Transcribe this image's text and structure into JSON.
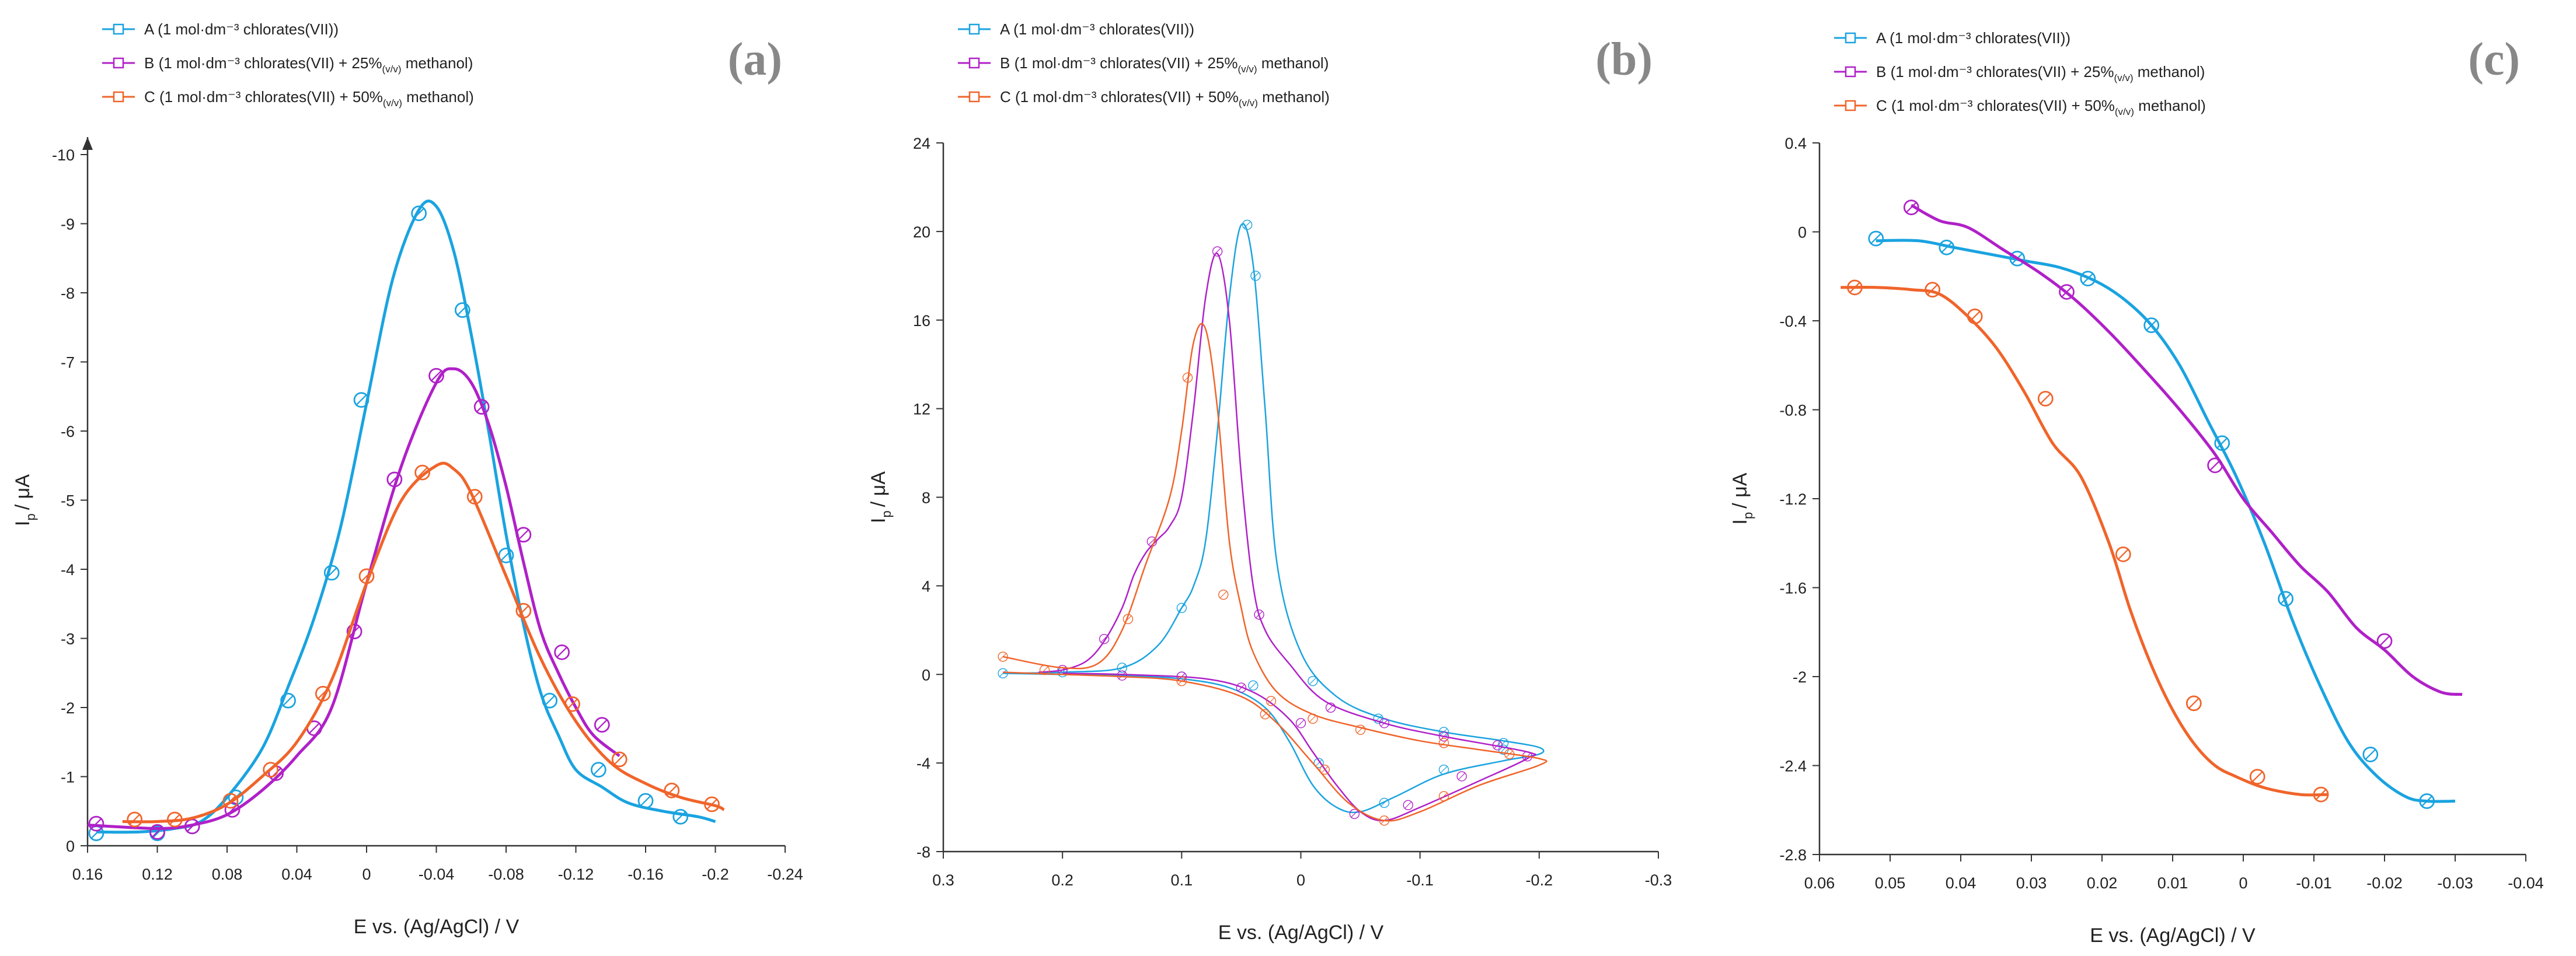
{
  "chart_data": [
    {
      "type": "line",
      "panel_label": "(a)",
      "xlabel": "E vs. (Ag/AgCl) / V",
      "ylabel_main": "I",
      "ylabel_sub": "p",
      "ylabel_rest": "/ μA",
      "xlim": [
        0.16,
        -0.24
      ],
      "ylim": [
        0,
        -10
      ],
      "xticks": [
        0.16,
        0.12,
        0.08,
        0.04,
        0,
        -0.04,
        -0.08,
        -0.12,
        -0.16,
        -0.2,
        -0.24
      ],
      "xtick_labels": [
        "0.16",
        "0.12",
        "0.08",
        "0.04",
        "0",
        "-0.04",
        "-0.08",
        "-0.12",
        "-0.16",
        "-0.2",
        "-0.24"
      ],
      "yticks": [
        0,
        -1,
        -2,
        -3,
        -4,
        -5,
        -6,
        -7,
        -8,
        -9,
        -10
      ],
      "ytick_labels": [
        "0",
        "-1",
        "-2",
        "-3",
        "-4",
        "-5",
        "-6",
        "-7",
        "-8",
        "-9",
        "-10"
      ],
      "y_arrow": true,
      "series": [
        {
          "name": "A (1 mol·dm⁻³ chlorates(VII))",
          "sub": "",
          "name_rest": "",
          "color": "#1aa3e0",
          "x": [
            0.155,
            0.13,
            0.11,
            0.095,
            0.08,
            0.06,
            0.045,
            0.03,
            0.015,
            0.0,
            -0.015,
            -0.03,
            -0.04,
            -0.05,
            -0.06,
            -0.07,
            -0.08,
            -0.09,
            -0.1,
            -0.11,
            -0.12,
            -0.135,
            -0.15,
            -0.17,
            -0.19,
            -0.2
          ],
          "y": [
            -0.2,
            -0.2,
            -0.25,
            -0.35,
            -0.7,
            -1.4,
            -2.3,
            -3.3,
            -4.6,
            -6.4,
            -8.2,
            -9.2,
            -9.25,
            -8.6,
            -7.4,
            -6.0,
            -4.5,
            -3.2,
            -2.2,
            -1.6,
            -1.1,
            -0.85,
            -0.62,
            -0.5,
            -0.42,
            -0.35
          ],
          "marker_x": [
            0.155,
            0.12,
            0.1,
            0.075,
            0.045,
            0.02,
            0.003,
            -0.03,
            -0.055,
            -0.08,
            -0.105,
            -0.133,
            -0.16,
            -0.18
          ],
          "marker_y": [
            -0.18,
            -0.18,
            -0.28,
            -0.7,
            -2.1,
            -3.95,
            -6.45,
            -9.15,
            -7.75,
            -4.2,
            -2.1,
            -1.1,
            -0.65,
            -0.42
          ]
        },
        {
          "name": "B (1 mol·dm⁻³ chlorates(VII) + 25%",
          "sub": "(v/v)",
          "name_rest": " methanol)",
          "color": "#b020c8",
          "x": [
            0.16,
            0.12,
            0.1,
            0.08,
            0.06,
            0.04,
            0.02,
            0.0,
            -0.02,
            -0.04,
            -0.05,
            -0.06,
            -0.07,
            -0.08,
            -0.09,
            -0.1,
            -0.11,
            -0.12,
            -0.13,
            -0.145
          ],
          "y": [
            -0.3,
            -0.25,
            -0.3,
            -0.45,
            -0.8,
            -1.3,
            -2.0,
            -3.8,
            -5.5,
            -6.7,
            -6.9,
            -6.7,
            -6.1,
            -5.2,
            -4.1,
            -3.1,
            -2.5,
            -2.0,
            -1.6,
            -1.3
          ],
          "marker_x": [
            0.155,
            0.12,
            0.1,
            0.077,
            0.052,
            0.03,
            0.007,
            -0.016,
            -0.04,
            -0.066,
            -0.09,
            -0.112,
            -0.135
          ],
          "marker_y": [
            -0.32,
            -0.2,
            -0.28,
            -0.52,
            -1.05,
            -1.7,
            -3.1,
            -5.3,
            -6.8,
            -6.35,
            -4.5,
            -2.8,
            -1.75
          ]
        },
        {
          "name": "C (1 mol·dm⁻³ chlorates(VII) + 50%",
          "sub": "(v/v)",
          "name_rest": " methanol)",
          "color": "#f0642a",
          "x": [
            0.14,
            0.12,
            0.1,
            0.08,
            0.06,
            0.04,
            0.02,
            0.0,
            -0.02,
            -0.04,
            -0.05,
            -0.06,
            -0.08,
            -0.1,
            -0.12,
            -0.14,
            -0.16,
            -0.18,
            -0.2,
            -0.205
          ],
          "y": [
            -0.35,
            -0.35,
            -0.4,
            -0.6,
            -1.0,
            -1.5,
            -2.4,
            -3.8,
            -5.0,
            -5.5,
            -5.45,
            -5.1,
            -3.9,
            -2.7,
            -1.8,
            -1.2,
            -0.9,
            -0.7,
            -0.58,
            -0.52
          ],
          "marker_x": [
            0.133,
            0.11,
            0.078,
            0.055,
            0.025,
            0.0,
            -0.032,
            -0.062,
            -0.09,
            -0.118,
            -0.145,
            -0.175,
            -0.198
          ],
          "marker_y": [
            -0.38,
            -0.38,
            -0.65,
            -1.1,
            -2.2,
            -3.9,
            -5.4,
            -5.05,
            -3.4,
            -2.05,
            -1.25,
            -0.8,
            -0.6
          ]
        }
      ]
    },
    {
      "type": "line",
      "panel_label": "(b)",
      "xlabel": "E vs. (Ag/AgCl) / V",
      "ylabel_main": "I",
      "ylabel_sub": "p",
      "ylabel_rest": "/ μA",
      "xlim": [
        0.3,
        -0.3
      ],
      "ylim": [
        -8,
        24
      ],
      "xticks": [
        0.3,
        0.2,
        0.1,
        0,
        -0.1,
        -0.2,
        -0.3
      ],
      "xtick_labels": [
        "0.3",
        "0.2",
        "0.1",
        "0",
        "-0.1",
        "-0.2",
        "-0.3"
      ],
      "yticks": [
        -8,
        -4,
        0,
        4,
        8,
        12,
        16,
        20,
        24
      ],
      "ytick_labels": [
        "-8",
        "-4",
        "0",
        "4",
        "8",
        "12",
        "16",
        "20",
        "24"
      ],
      "y_arrow": false,
      "series": [
        {
          "name": "A (1 mol·dm⁻³ chlorates(VII))",
          "sub": "",
          "name_rest": "",
          "color": "#1aa3e0",
          "x": [
            0.25,
            0.2,
            0.15,
            0.12,
            0.1,
            0.09,
            0.08,
            0.07,
            0.06,
            0.05,
            0.04,
            0.03,
            0.02,
            0.0,
            -0.03,
            -0.07,
            -0.12,
            -0.17,
            -0.2,
            -0.2,
            -0.17,
            -0.12,
            -0.08,
            -0.05,
            -0.03,
            -0.01,
            0.01,
            0.03,
            0.06,
            0.1,
            0.15,
            0.2,
            0.25
          ],
          "y": [
            0.05,
            0.1,
            0.3,
            1.3,
            3.0,
            4.0,
            6.0,
            11.0,
            17.0,
            20.3,
            18.5,
            12.0,
            5.0,
            1.0,
            -1.0,
            -2.0,
            -2.6,
            -3.0,
            -3.3,
            -3.6,
            -3.9,
            -4.5,
            -5.5,
            -6.2,
            -6.0,
            -5.0,
            -3.0,
            -1.5,
            -0.6,
            -0.2,
            -0.05,
            0.0,
            0.05
          ],
          "marker_x": [
            0.25,
            0.2,
            0.15,
            0.1,
            0.045,
            0.038,
            -0.01,
            -0.065,
            -0.12,
            -0.17,
            -0.17,
            -0.12,
            -0.07,
            -0.015,
            0.04,
            0.1
          ],
          "marker_y": [
            0.05,
            0.1,
            0.3,
            3.0,
            20.3,
            18.0,
            -0.3,
            -2.0,
            -2.6,
            -3.1,
            -3.4,
            -4.3,
            -5.8,
            -4.0,
            -0.5,
            -0.1
          ]
        },
        {
          "name": "B (1 mol·dm⁻³ chlorates(VII) + 25%",
          "sub": "(v/v)",
          "name_rest": " methanol)",
          "color": "#b020c8",
          "x": [
            0.22,
            0.2,
            0.18,
            0.165,
            0.15,
            0.14,
            0.13,
            0.12,
            0.11,
            0.1,
            0.09,
            0.08,
            0.07,
            0.06,
            0.05,
            0.04,
            0.03,
            0.01,
            -0.02,
            -0.07,
            -0.12,
            -0.19,
            -0.19,
            -0.15,
            -0.1,
            -0.07,
            -0.05,
            -0.03,
            -0.01,
            0.01,
            0.04,
            0.08,
            0.15,
            0.2
          ],
          "y": [
            0.1,
            0.2,
            0.6,
            1.5,
            3.0,
            4.5,
            5.5,
            6.1,
            6.7,
            8.0,
            12.0,
            17.0,
            19.0,
            16.0,
            9.0,
            4.0,
            2.0,
            0.5,
            -1.2,
            -2.2,
            -2.8,
            -3.5,
            -3.8,
            -4.8,
            -6.0,
            -6.6,
            -6.2,
            -5.0,
            -3.5,
            -2.0,
            -0.8,
            -0.2,
            0.0,
            0.05
          ],
          "marker_x": [
            0.2,
            0.165,
            0.125,
            0.07,
            0.035,
            -0.025,
            -0.07,
            -0.12,
            -0.165,
            -0.19,
            -0.135,
            -0.09,
            -0.045,
            0.0,
            0.05,
            0.1,
            0.15
          ],
          "marker_y": [
            0.2,
            1.6,
            6.0,
            19.1,
            2.7,
            -1.5,
            -2.2,
            -2.8,
            -3.2,
            -3.7,
            -4.6,
            -5.9,
            -6.3,
            -2.2,
            -0.6,
            -0.1,
            -0.05
          ]
        },
        {
          "name": "C (1 mol·dm⁻³ chlorates(VII) + 50%",
          "sub": "(v/v)",
          "name_rest": " methanol)",
          "color": "#f0642a",
          "x": [
            0.25,
            0.2,
            0.17,
            0.15,
            0.13,
            0.11,
            0.1,
            0.09,
            0.08,
            0.07,
            0.06,
            0.05,
            0.04,
            0.02,
            -0.01,
            -0.05,
            -0.1,
            -0.15,
            -0.2,
            -0.2,
            -0.15,
            -0.1,
            -0.07,
            -0.04,
            -0.01,
            0.02,
            0.05,
            0.1,
            0.15,
            0.2,
            0.25
          ],
          "y": [
            0.8,
            0.3,
            0.5,
            2.0,
            5.0,
            8.0,
            11.0,
            15.0,
            15.6,
            12.0,
            6.0,
            3.0,
            1.0,
            -0.8,
            -1.8,
            -2.4,
            -3.0,
            -3.4,
            -3.8,
            -4.1,
            -5.0,
            -6.2,
            -6.6,
            -5.8,
            -4.0,
            -2.2,
            -1.0,
            -0.3,
            -0.1,
            0.0,
            0.1
          ],
          "marker_x": [
            0.25,
            0.215,
            0.145,
            0.095,
            0.065,
            0.025,
            -0.01,
            -0.05,
            -0.12,
            -0.175,
            -0.12,
            -0.07,
            -0.02,
            0.03,
            0.1
          ],
          "marker_y": [
            0.8,
            0.2,
            2.5,
            13.4,
            3.6,
            -1.2,
            -2.0,
            -2.5,
            -3.1,
            -3.6,
            -5.5,
            -6.6,
            -4.3,
            -1.8,
            -0.3
          ]
        }
      ]
    },
    {
      "type": "line",
      "panel_label": "(c)",
      "xlabel": "E vs. (Ag/AgCl) / V",
      "ylabel_main": "I",
      "ylabel_sub": "p",
      "ylabel_rest": "/ μA",
      "xlim": [
        0.06,
        -0.04
      ],
      "ylim": [
        -2.8,
        0.4
      ],
      "xticks": [
        0.06,
        0.05,
        0.04,
        0.03,
        0.02,
        0.01,
        0,
        -0.01,
        -0.02,
        -0.03,
        -0.04
      ],
      "xtick_labels": [
        "0.06",
        "0.05",
        "0.04",
        "0.03",
        "0.02",
        "0.01",
        "0",
        "-0.01",
        "-0.02",
        "-0.03",
        "-0.04"
      ],
      "yticks": [
        -2.8,
        -2.4,
        -2,
        -1.6,
        -1.2,
        -0.8,
        -0.4,
        0,
        0.4
      ],
      "ytick_labels": [
        "-2.8",
        "-2.4",
        "-2",
        "-1.6",
        "-1.2",
        "-0.8",
        "-0.4",
        "0",
        "0.4"
      ],
      "y_arrow": false,
      "series": [
        {
          "name": "A (1 mol·dm⁻³ chlorates(VII))",
          "sub": "",
          "name_rest": "",
          "color": "#1aa3e0",
          "x": [
            0.052,
            0.046,
            0.041,
            0.036,
            0.031,
            0.026,
            0.021,
            0.017,
            0.013,
            0.009,
            0.005,
            0.001,
            -0.003,
            -0.007,
            -0.011,
            -0.015,
            -0.019,
            -0.023,
            -0.026,
            -0.03
          ],
          "y": [
            -0.04,
            -0.04,
            -0.07,
            -0.1,
            -0.13,
            -0.16,
            -0.22,
            -0.3,
            -0.42,
            -0.6,
            -0.85,
            -1.1,
            -1.4,
            -1.75,
            -2.05,
            -2.3,
            -2.45,
            -2.54,
            -2.56,
            -2.56
          ],
          "marker_x": [
            0.052,
            0.042,
            0.032,
            0.022,
            0.013,
            0.003,
            -0.006,
            -0.018,
            -0.026
          ],
          "marker_y": [
            -0.03,
            -0.07,
            -0.12,
            -0.21,
            -0.42,
            -0.95,
            -1.65,
            -2.35,
            -2.56
          ]
        },
        {
          "name": "B (1 mol·dm⁻³ chlorates(VII) + 25%",
          "sub": "(v/v)",
          "name_rest": " methanol)",
          "color": "#b020c8",
          "x": [
            0.047,
            0.043,
            0.039,
            0.034,
            0.029,
            0.024,
            0.019,
            0.014,
            0.009,
            0.004,
            0.0,
            -0.004,
            -0.008,
            -0.012,
            -0.016,
            -0.02,
            -0.024,
            -0.028,
            -0.031
          ],
          "y": [
            0.12,
            0.05,
            0.02,
            -0.08,
            -0.18,
            -0.3,
            -0.45,
            -0.62,
            -0.8,
            -1.0,
            -1.2,
            -1.35,
            -1.5,
            -1.62,
            -1.78,
            -1.88,
            -2.0,
            -2.07,
            -2.08
          ],
          "marker_x": [
            0.047,
            0.025,
            0.004,
            -0.02
          ],
          "marker_y": [
            0.11,
            -0.27,
            -1.05,
            -1.84
          ]
        },
        {
          "name": "C (1 mol·dm⁻³ chlorates(VII) + 50%",
          "sub": "(v/v)",
          "name_rest": " methanol)",
          "color": "#f0642a",
          "x": [
            0.057,
            0.052,
            0.047,
            0.043,
            0.039,
            0.035,
            0.031,
            0.027,
            0.023,
            0.019,
            0.016,
            0.013,
            0.01,
            0.007,
            0.004,
            0.001,
            -0.003,
            -0.008,
            -0.012
          ],
          "y": [
            -0.25,
            -0.25,
            -0.26,
            -0.28,
            -0.38,
            -0.52,
            -0.72,
            -0.95,
            -1.1,
            -1.4,
            -1.7,
            -1.95,
            -2.15,
            -2.3,
            -2.4,
            -2.45,
            -2.5,
            -2.53,
            -2.53
          ],
          "marker_x": [
            0.055,
            0.044,
            0.038,
            0.028,
            0.017,
            0.007,
            -0.002,
            -0.011
          ],
          "marker_y": [
            -0.25,
            -0.26,
            -0.38,
            -0.75,
            -1.45,
            -2.12,
            -2.45,
            -2.53
          ]
        }
      ]
    }
  ]
}
